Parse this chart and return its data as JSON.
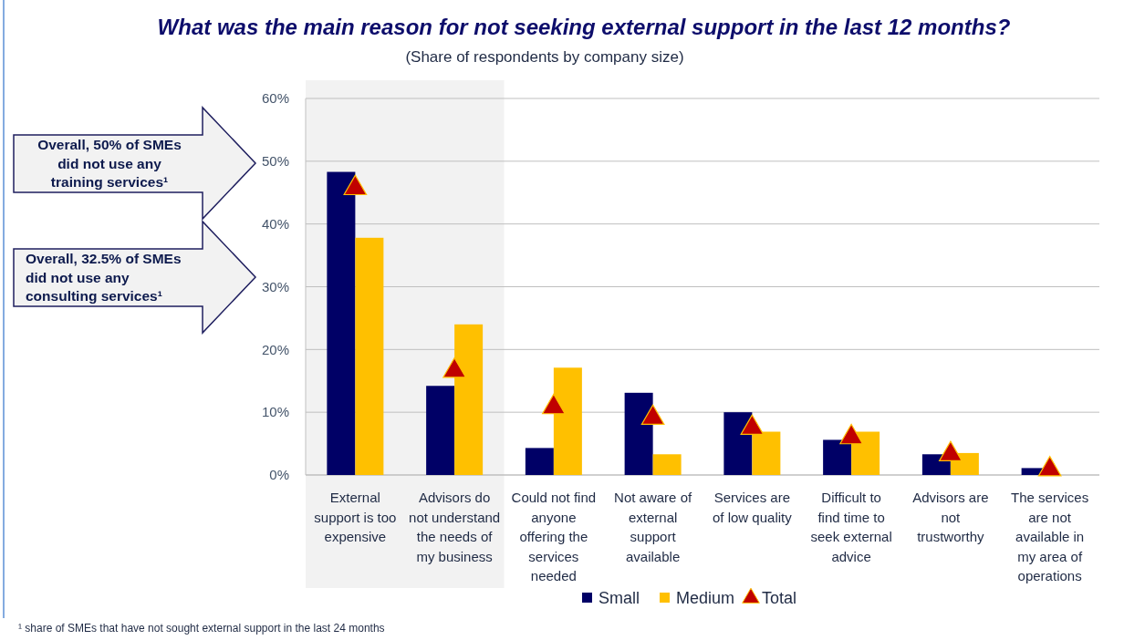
{
  "chart_data": {
    "type": "bar",
    "title": "What was the main reason for not seeking external support in the last 12 months?",
    "subtitle": "(Share of respondents by company size)",
    "categories": [
      "External support is too expensive",
      "Advisors do not understand the needs of my business",
      "Could not find anyone offering the services needed",
      "Not aware of external support available",
      "Services are of low quality",
      "Difficult to find time to seek external advice",
      "Advisors are not trustworthy",
      "The services are not available in my area of operations"
    ],
    "series": [
      {
        "name": "Small",
        "color": "#000066",
        "values": [
          48.3,
          14.2,
          4.3,
          13.1,
          10.0,
          5.6,
          3.3,
          1.1
        ]
      },
      {
        "name": "Medium",
        "color": "#ffc000",
        "values": [
          37.8,
          24.0,
          17.1,
          3.3,
          6.9,
          6.9,
          3.5,
          0
        ]
      },
      {
        "name": "Total",
        "type": "scatter",
        "marker": "triangle",
        "color": "#c00000",
        "values": [
          45.7,
          16.6,
          10.8,
          9.1,
          7.5,
          6.0,
          3.3,
          0.9
        ]
      }
    ],
    "ylim": [
      0,
      60
    ],
    "yticks": [
      {
        "value": 0,
        "label": "0%"
      },
      {
        "value": 10,
        "label": "10%"
      },
      {
        "value": 20,
        "label": "20%"
      },
      {
        "value": 30,
        "label": "30%"
      },
      {
        "value": 40,
        "label": "40%"
      },
      {
        "value": 50,
        "label": "50%"
      },
      {
        "value": 60,
        "label": "60%"
      }
    ],
    "grid": "y",
    "legend": "bottom",
    "bands": [
      {
        "axis": "x",
        "from": "External support is too expensive",
        "to": "Advisors do not understand the needs of my business",
        "color": "#f2f2f2"
      }
    ],
    "annotations": [
      "Overall, 50% of SMEs did not use any training services¹",
      "Overall, 32.5% of SMEs did not use any consulting services¹",
      "¹ share of SMEs that have not sought external support in the last 24 months"
    ]
  }
}
